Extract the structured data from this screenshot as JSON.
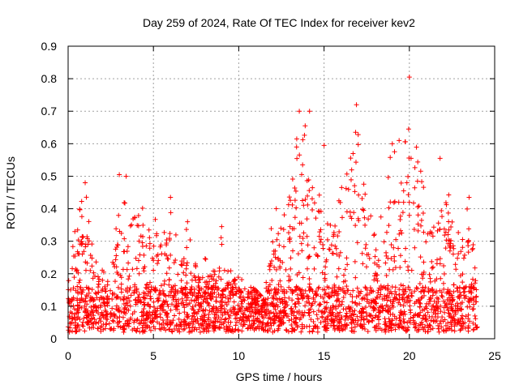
{
  "chart_data": {
    "type": "scatter",
    "title": "Day 259 of 2024, Rate Of TEC Index for receiver kev2",
    "xlabel": "GPS time / hours",
    "ylabel": "ROTI / TECUs",
    "xlim": [
      0,
      25
    ],
    "ylim": [
      0,
      0.9
    ],
    "xticks": [
      0,
      5,
      10,
      15,
      20,
      25
    ],
    "xtick_labels": [
      "0",
      "5",
      "10",
      "15",
      "20",
      "25"
    ],
    "yticks": [
      0,
      0.1,
      0.2,
      0.3,
      0.4,
      0.5,
      0.6,
      0.7,
      0.8,
      0.9
    ],
    "ytick_labels": [
      "0",
      "0.1",
      "0.2",
      "0.3",
      "0.4",
      "0.5",
      "0.6",
      "0.7",
      "0.8",
      "0.9"
    ],
    "grid": true,
    "marker": "plus",
    "marker_color": "#ff0000",
    "envelope": [
      {
        "x": 0.0,
        "y": 0.22
      },
      {
        "x": 0.5,
        "y": 0.4
      },
      {
        "x": 1.0,
        "y": 0.47
      },
      {
        "x": 1.5,
        "y": 0.25
      },
      {
        "x": 2.0,
        "y": 0.22
      },
      {
        "x": 2.5,
        "y": 0.18
      },
      {
        "x": 3.0,
        "y": 0.5
      },
      {
        "x": 3.5,
        "y": 0.38
      },
      {
        "x": 4.0,
        "y": 0.4
      },
      {
        "x": 4.5,
        "y": 0.42
      },
      {
        "x": 5.0,
        "y": 0.38
      },
      {
        "x": 5.5,
        "y": 0.35
      },
      {
        "x": 6.0,
        "y": 0.43
      },
      {
        "x": 6.5,
        "y": 0.27
      },
      {
        "x": 7.0,
        "y": 0.36
      },
      {
        "x": 7.5,
        "y": 0.22
      },
      {
        "x": 8.0,
        "y": 0.25
      },
      {
        "x": 8.5,
        "y": 0.22
      },
      {
        "x": 9.0,
        "y": 0.34
      },
      {
        "x": 9.5,
        "y": 0.25
      },
      {
        "x": 10.0,
        "y": 0.2
      },
      {
        "x": 10.5,
        "y": 0.17
      },
      {
        "x": 11.0,
        "y": 0.15
      },
      {
        "x": 11.5,
        "y": 0.12
      },
      {
        "x": 12.0,
        "y": 0.4
      },
      {
        "x": 12.5,
        "y": 0.35
      },
      {
        "x": 13.0,
        "y": 0.5
      },
      {
        "x": 13.5,
        "y": 0.7
      },
      {
        "x": 14.0,
        "y": 0.7
      },
      {
        "x": 14.5,
        "y": 0.6
      },
      {
        "x": 15.0,
        "y": 0.48
      },
      {
        "x": 15.5,
        "y": 0.42
      },
      {
        "x": 16.0,
        "y": 0.5
      },
      {
        "x": 16.5,
        "y": 0.55
      },
      {
        "x": 17.0,
        "y": 0.72
      },
      {
        "x": 17.5,
        "y": 0.4
      },
      {
        "x": 18.0,
        "y": 0.38
      },
      {
        "x": 18.5,
        "y": 0.45
      },
      {
        "x": 19.0,
        "y": 0.61
      },
      {
        "x": 19.5,
        "y": 0.5
      },
      {
        "x": 20.0,
        "y": 0.81
      },
      {
        "x": 20.5,
        "y": 0.55
      },
      {
        "x": 21.0,
        "y": 0.45
      },
      {
        "x": 21.5,
        "y": 0.42
      },
      {
        "x": 22.0,
        "y": 0.56
      },
      {
        "x": 22.5,
        "y": 0.38
      },
      {
        "x": 23.0,
        "y": 0.35
      },
      {
        "x": 23.5,
        "y": 0.43
      },
      {
        "x": 24.0,
        "y": 0.3
      }
    ],
    "peaks": [
      {
        "x": 20.0,
        "y": 0.805
      },
      {
        "x": 16.9,
        "y": 0.72
      },
      {
        "x": 13.55,
        "y": 0.7
      },
      {
        "x": 14.15,
        "y": 0.7
      },
      {
        "x": 16.85,
        "y": 0.635
      },
      {
        "x": 19.4,
        "y": 0.61
      },
      {
        "x": 19.0,
        "y": 0.6
      },
      {
        "x": 15.0,
        "y": 0.595
      },
      {
        "x": 21.8,
        "y": 0.555
      },
      {
        "x": 20.1,
        "y": 0.555
      },
      {
        "x": 3.0,
        "y": 0.505
      },
      {
        "x": 3.4,
        "y": 0.5
      },
      {
        "x": 1.0,
        "y": 0.48
      },
      {
        "x": 6.0,
        "y": 0.435
      },
      {
        "x": 23.5,
        "y": 0.435
      },
      {
        "x": 7.0,
        "y": 0.36
      },
      {
        "x": 9.0,
        "y": 0.345
      },
      {
        "x": 12.2,
        "y": 0.4
      }
    ]
  }
}
